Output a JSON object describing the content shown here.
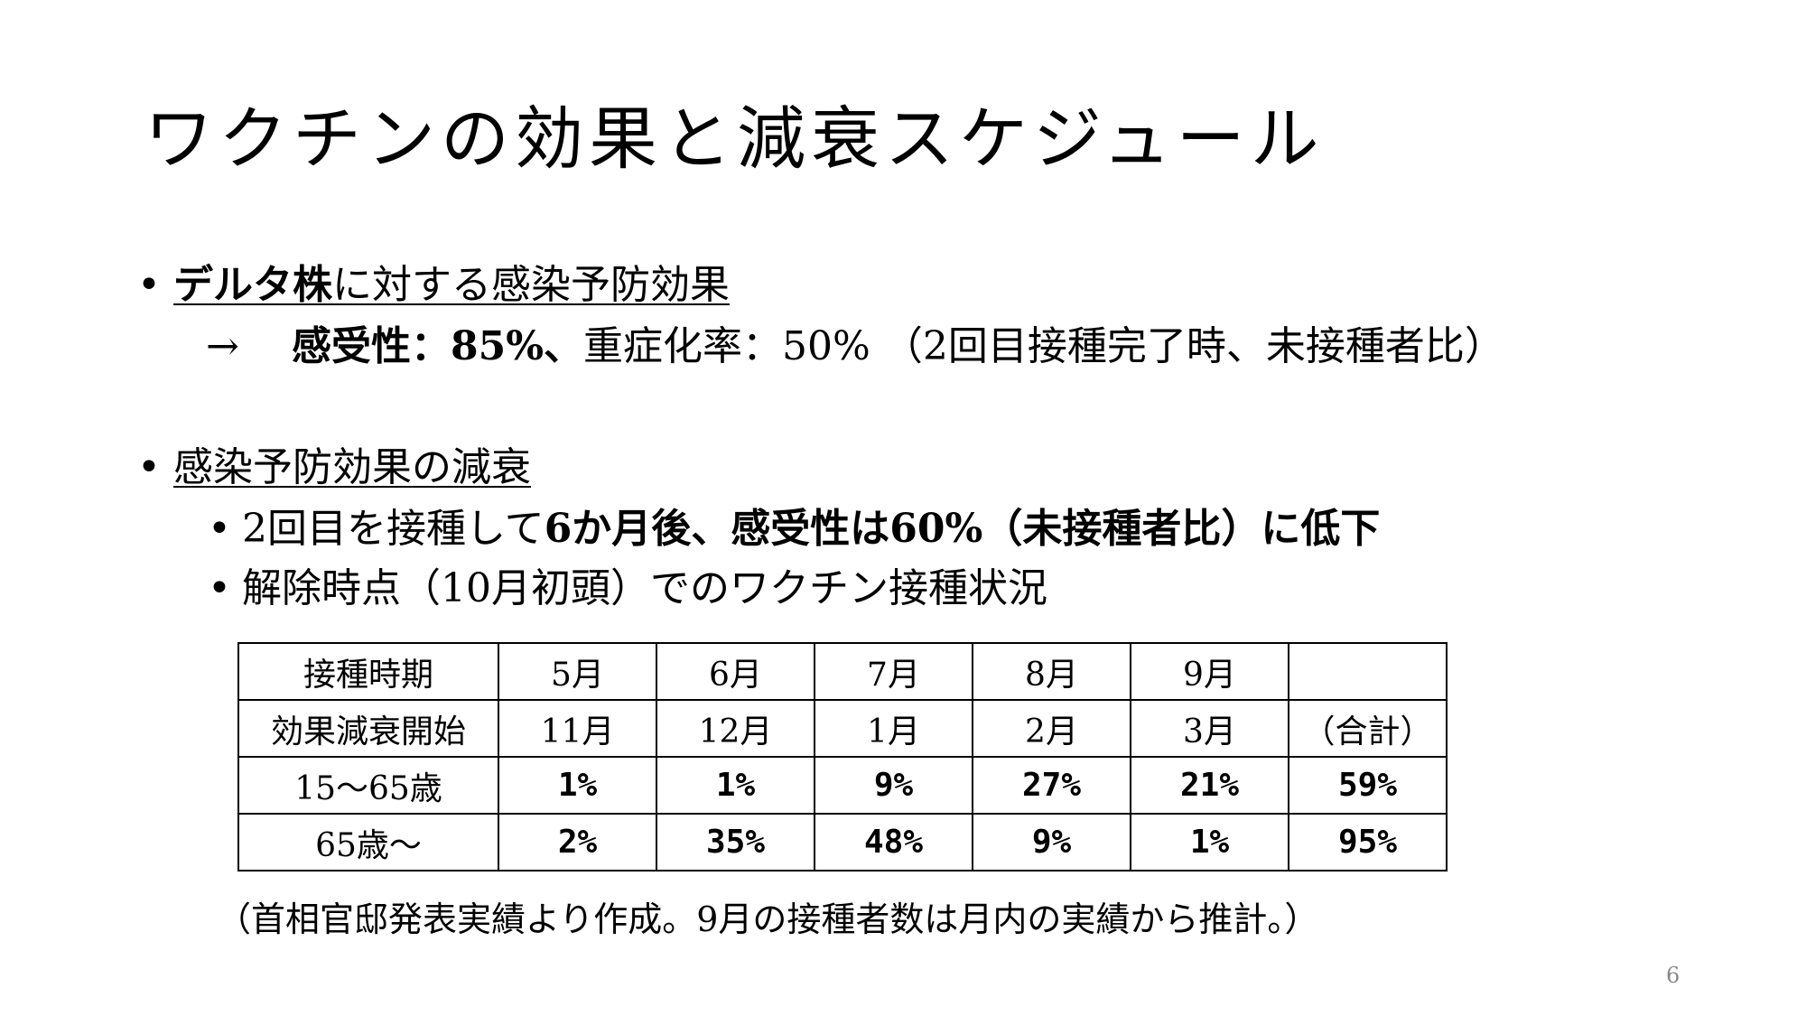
{
  "title": "ワクチンの効果と減衰スケジュール",
  "bullets": {
    "b1": {
      "heading_part1": "デルタ株",
      "heading_part2": "に対する感染予防効果",
      "arrow": "→",
      "detail_bold": "感受性：85%、",
      "detail_rest": "重症化率：50% （2回目接種完了時、未接種者比）"
    },
    "b2": {
      "heading": "感染予防効果の減衰",
      "sub1_part1": "2回目を接種して",
      "sub1_part2": "6か月後、感受性は60%（未接種者比）に低下",
      "sub2": "解除時点（10月初頭）でのワクチン接種状況"
    }
  },
  "bullet_symbol": "•",
  "table": {
    "rows": [
      [
        "接種時期",
        "5月",
        "6月",
        "7月",
        "8月",
        "9月",
        ""
      ],
      [
        "効果減衰開始",
        "11月",
        "12月",
        "1月",
        "2月",
        "3月",
        "（合計）"
      ],
      [
        "15～65歳",
        "1%",
        "1%",
        "9%",
        "27%",
        "21%",
        "59%"
      ],
      [
        "65歳～",
        "2%",
        "35%",
        "48%",
        "9%",
        "1%",
        "95%"
      ]
    ]
  },
  "note": "（首相官邸発表実績より作成。9月の接種者数は月内の実績から推計。）",
  "page_number": "6"
}
